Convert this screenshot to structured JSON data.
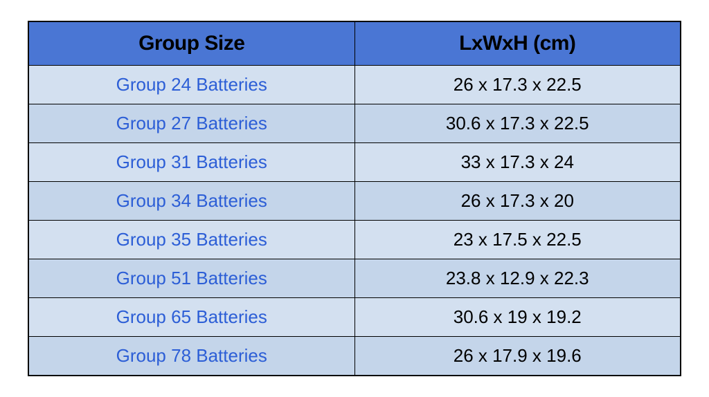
{
  "table": {
    "columns": [
      "Group Size",
      "LxWxH (cm)"
    ],
    "header_bg": "#4a76d4",
    "header_color": "#000000",
    "header_fontsize": "30px",
    "header_font_family": "'Arial Narrow', Arial, sans-serif",
    "row_bg_odd": "#d3e0f0",
    "row_bg_even": "#c4d5ea",
    "cell_fontsize": "26px",
    "left_col_color": "#2c5ed6",
    "right_col_color": "#000000",
    "border_color": "#000000",
    "rows": [
      {
        "group": "Group 24 Batteries",
        "dims": "26 x 17.3 x 22.5"
      },
      {
        "group": "Group 27 Batteries",
        "dims": "30.6 x 17.3 x 22.5"
      },
      {
        "group": "Group 31 Batteries",
        "dims": "33 x 17.3 x 24"
      },
      {
        "group": "Group 34 Batteries",
        "dims": "26 x 17.3 x 20"
      },
      {
        "group": "Group 35 Batteries",
        "dims": "23 x 17.5 x 22.5"
      },
      {
        "group": "Group 51 Batteries",
        "dims": "23.8 x 12.9 x 22.3"
      },
      {
        "group": "Group 65 Batteries",
        "dims": "30.6 x 19 x 19.2"
      },
      {
        "group": "Group 78 Batteries",
        "dims": "26 x 17.9 x 19.6"
      }
    ]
  }
}
